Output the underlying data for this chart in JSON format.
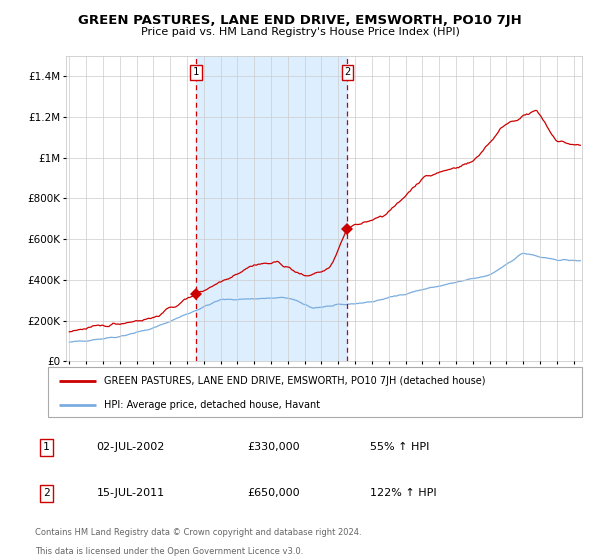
{
  "title": "GREEN PASTURES, LANE END DRIVE, EMSWORTH, PO10 7JH",
  "subtitle": "Price paid vs. HM Land Registry's House Price Index (HPI)",
  "red_label": "GREEN PASTURES, LANE END DRIVE, EMSWORTH, PO10 7JH (detached house)",
  "blue_label": "HPI: Average price, detached house, Havant",
  "transaction1_date": "02-JUL-2002",
  "transaction1_price": 330000,
  "transaction1_pct": "55% ↑ HPI",
  "transaction2_date": "15-JUL-2011",
  "transaction2_price": 650000,
  "transaction2_pct": "122% ↑ HPI",
  "footnote1": "Contains HM Land Registry data © Crown copyright and database right 2024.",
  "footnote2": "This data is licensed under the Open Government Licence v3.0.",
  "red_color": "#cc0000",
  "blue_color": "#7aadde",
  "shade_color": "#ddeeff",
  "dashed_color": "#cc0000",
  "grid_color": "#cccccc",
  "bg_color": "#ffffff",
  "t1_x": 2002.54,
  "t2_x": 2011.54,
  "t1_y": 330000,
  "t2_y": 650000,
  "ylim_max": 1500000,
  "xlim_start": 1994.8,
  "xlim_end": 2025.5,
  "yticks": [
    0,
    200000,
    400000,
    600000,
    800000,
    1000000,
    1200000,
    1400000
  ]
}
